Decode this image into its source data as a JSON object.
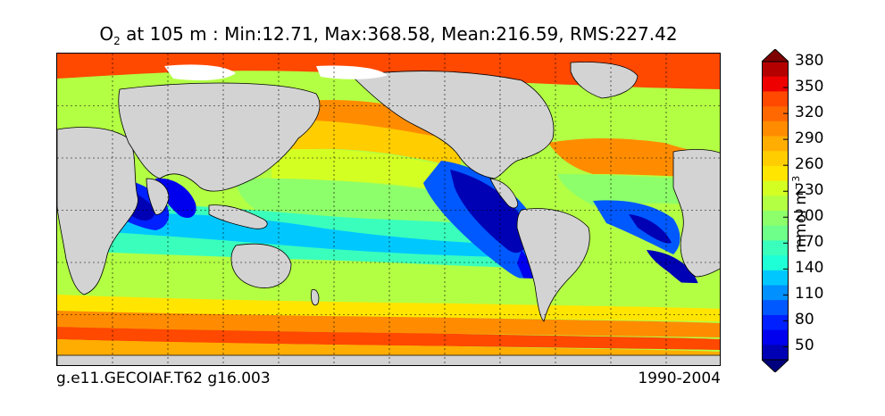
{
  "title": {
    "variable": "O",
    "subscript": "2",
    "rest": " at 105 m : Min:12.71, Max:368.58, Mean:216.59, RMS:227.42"
  },
  "footer": {
    "left": "g.e11.GECOIAF.T62 g16.003",
    "right": "1990-2004"
  },
  "colorbar": {
    "unit_base": "mmol m",
    "unit_exponent": "−3",
    "levels": [
      20,
      35,
      50,
      65,
      80,
      95,
      110,
      125,
      140,
      155,
      170,
      185,
      200,
      215,
      230,
      245,
      260,
      275,
      290,
      305,
      320,
      335,
      350,
      365,
      380,
      395
    ],
    "tick_labels": [
      "50",
      "80",
      "110",
      "140",
      "170",
      "200",
      "230",
      "260",
      "290",
      "320",
      "350",
      "380"
    ],
    "colors": [
      "#00007f",
      "#0000b5",
      "#0000ee",
      "#0020ff",
      "#0058ff",
      "#0090ff",
      "#00c8ff",
      "#1fffd7",
      "#3affbc",
      "#6dff8a",
      "#8dff6a",
      "#b3ff44",
      "#d4ff23",
      "#ffe500",
      "#ffcd00",
      "#ffad00",
      "#ff8c00",
      "#ff6800",
      "#ff4800",
      "#ee0000",
      "#b50000",
      "#7f0000"
    ],
    "land_color": "#d3d3d3",
    "extend": "both"
  },
  "map": {
    "projection": "cylindrical",
    "grid": "dashed",
    "land": "gray",
    "ice_free_white": "white"
  }
}
